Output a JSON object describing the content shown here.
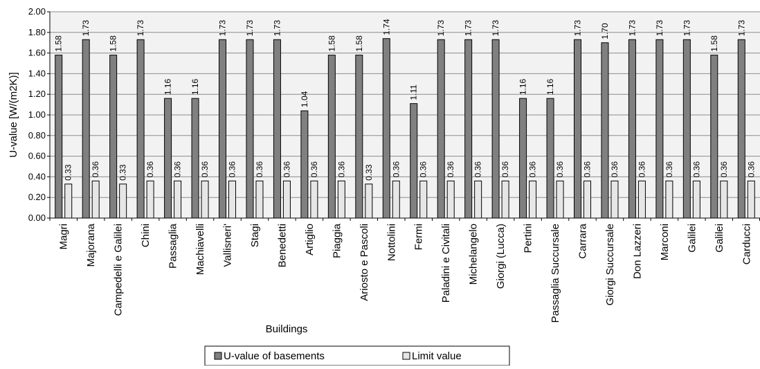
{
  "chart_data": {
    "type": "bar",
    "title": "",
    "xlabel": "Buildings",
    "ylabel": "U-value [W/(m2K)]",
    "ylim": [
      0,
      2.0
    ],
    "yticks": [
      "0.00",
      "0.20",
      "0.40",
      "0.60",
      "0.80",
      "1.00",
      "1.20",
      "1.40",
      "1.60",
      "1.80",
      "2.00"
    ],
    "grid": true,
    "legend_position": "bottom",
    "categories": [
      "Magri",
      "Majorana",
      "Campedelli e Galilei",
      "Chini",
      "Passaglia",
      "Machiavelli",
      "Vallisneri'",
      "Stagi",
      "Benedetti",
      "Artiglio",
      "Piaggia",
      "Ariosto e Pascoli",
      "Nottolini",
      "Fermi",
      "Paladini e Civitali",
      "Michelangelo",
      "Giorgi (Lucca)",
      "Pertini",
      "Passaglia Succursale",
      "Carrara",
      "Giorgi Succursale",
      "Don Lazzeri",
      "Marconi",
      "Galilei",
      "Galilei",
      "Carducci"
    ],
    "series": [
      {
        "name": "U-value of basements",
        "color": "#808080",
        "values": [
          1.58,
          1.73,
          1.58,
          1.73,
          1.16,
          1.16,
          1.73,
          1.73,
          1.73,
          1.04,
          1.58,
          1.58,
          1.74,
          1.11,
          1.73,
          1.73,
          1.73,
          1.16,
          1.16,
          1.73,
          1.7,
          1.73,
          1.73,
          1.73,
          1.58,
          1.73
        ],
        "labels": [
          "1.58",
          "1.73",
          "1.58",
          "1.73",
          "1.16",
          "1.16",
          "1.73",
          "1.73",
          "1.73",
          "1.04",
          "1.58",
          "1.58",
          "1.74",
          "1.11",
          "1.73",
          "1.73",
          "1.73",
          "1.16",
          "1.16",
          "1.73",
          "1.70",
          "1.73",
          "1.73",
          "1.73",
          "1.58",
          "1.73"
        ]
      },
      {
        "name": "Limit value",
        "color": "#e6e6e6",
        "values": [
          0.33,
          0.36,
          0.33,
          0.36,
          0.36,
          0.36,
          0.36,
          0.36,
          0.36,
          0.36,
          0.36,
          0.33,
          0.36,
          0.36,
          0.36,
          0.36,
          0.36,
          0.36,
          0.36,
          0.36,
          0.36,
          0.36,
          0.36,
          0.36,
          0.36,
          0.36
        ],
        "labels": [
          "0.33",
          "0.36",
          "0.33",
          "0.36",
          "0.36",
          "0.36",
          "0.36",
          "0.36",
          "0.36",
          "0.36",
          "0.36",
          "0.33",
          "0.36",
          "0.36",
          "0.36",
          "0.36",
          "0.36",
          "0.36",
          "0.36",
          "0.36",
          "0.36",
          "0.36",
          "0.36",
          "0.36",
          "0.36",
          "0.36"
        ]
      }
    ],
    "plot_background": "#f2f2f2",
    "grid_color": "#8c8c8c"
  }
}
